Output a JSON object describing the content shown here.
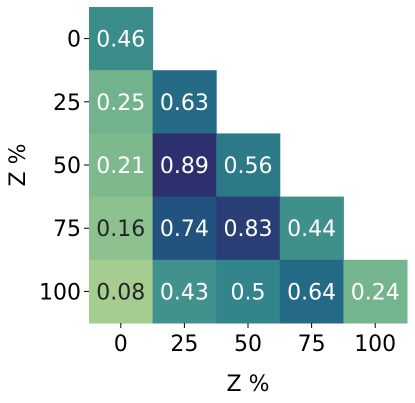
{
  "chart_data": {
    "type": "heatmap",
    "x_categories": [
      "0",
      "25",
      "50",
      "75",
      "100"
    ],
    "y_categories": [
      "0",
      "25",
      "50",
      "75",
      "100"
    ],
    "values": [
      [
        0.46,
        null,
        null,
        null,
        null
      ],
      [
        0.25,
        0.63,
        null,
        null,
        null
      ],
      [
        0.21,
        0.89,
        0.56,
        null,
        null
      ],
      [
        0.16,
        0.74,
        0.83,
        0.44,
        null
      ],
      [
        0.08,
        0.43,
        0.5,
        0.64,
        0.24
      ]
    ],
    "cell_labels": [
      [
        "0.46",
        "",
        "",
        "",
        ""
      ],
      [
        "0.25",
        "0.63",
        "",
        "",
        ""
      ],
      [
        "0.21",
        "0.89",
        "0.56",
        "",
        ""
      ],
      [
        "0.16",
        "0.74",
        "0.83",
        "0.44",
        ""
      ],
      [
        "0.08",
        "0.43",
        "0.5",
        "0.64",
        "0.24"
      ]
    ],
    "xlabel": "Z %",
    "ylabel": "Z %",
    "mask": "upper-triangle",
    "colormap": "crest",
    "colorbar": false,
    "grid": false
  }
}
